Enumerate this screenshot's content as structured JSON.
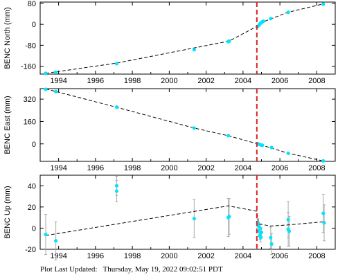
{
  "footer": {
    "label": "Plot Last Updated:",
    "timestamp": "Thursday, May 19, 2022 09:02:51 PDT"
  },
  "colors": {
    "data": "#00e5ff",
    "errorbar": "#aaaaaa",
    "model": "#000000",
    "event": "#dd2222"
  },
  "chart_data": [
    {
      "type": "scatter",
      "ylabel": "BENC North (mm)",
      "xlim": [
        1993.0,
        2009.0
      ],
      "ylim": [
        -190,
        85
      ],
      "xticks": [
        1994,
        1996,
        1998,
        2000,
        2002,
        2004,
        2006,
        2008
      ],
      "yticks": [
        80,
        0,
        -80,
        -160
      ],
      "event_line_x": 2004.75,
      "points": [
        {
          "x": 1993.3,
          "y": -187
        },
        {
          "x": 1993.85,
          "y": -183
        },
        {
          "x": 1997.15,
          "y": -150
        },
        {
          "x": 2001.35,
          "y": -97
        },
        {
          "x": 2003.2,
          "y": -66
        },
        {
          "x": 2003.25,
          "y": -64
        },
        {
          "x": 2004.8,
          "y": -8
        },
        {
          "x": 2004.87,
          "y": -3
        },
        {
          "x": 2004.92,
          "y": 2
        },
        {
          "x": 2004.97,
          "y": 6
        },
        {
          "x": 2005.05,
          "y": 10
        },
        {
          "x": 2005.1,
          "y": 12
        },
        {
          "x": 2005.5,
          "y": 22
        },
        {
          "x": 2006.45,
          "y": 46
        },
        {
          "x": 2008.35,
          "y": 77
        }
      ],
      "model": [
        {
          "x": 1993.3,
          "y": -187
        },
        {
          "x": 1997.15,
          "y": -148
        },
        {
          "x": 2003.25,
          "y": -64
        },
        {
          "x": 2004.75,
          "y": -8
        },
        {
          "x": 2005.1,
          "y": 10
        },
        {
          "x": 2006.45,
          "y": 46
        },
        {
          "x": 2008.35,
          "y": 78
        }
      ]
    },
    {
      "type": "scatter",
      "ylabel": "BENC East (mm)",
      "xlim": [
        1993.0,
        2009.0
      ],
      "ylim": [
        -125,
        395
      ],
      "xticks": [
        1994,
        1996,
        1998,
        2000,
        2002,
        2004,
        2006,
        2008
      ],
      "yticks": [
        320,
        160,
        0
      ],
      "event_line_x": 2004.75,
      "points": [
        {
          "x": 1993.3,
          "y": 390
        },
        {
          "x": 1993.85,
          "y": 374
        },
        {
          "x": 1997.15,
          "y": 263
        },
        {
          "x": 2001.35,
          "y": 113
        },
        {
          "x": 2003.2,
          "y": 59
        },
        {
          "x": 2004.8,
          "y": 1
        },
        {
          "x": 2004.87,
          "y": -2
        },
        {
          "x": 2004.97,
          "y": -8
        },
        {
          "x": 2005.05,
          "y": -10
        },
        {
          "x": 2005.55,
          "y": -26
        },
        {
          "x": 2006.45,
          "y": -67
        },
        {
          "x": 2008.35,
          "y": -122
        }
      ],
      "model": [
        {
          "x": 1993.3,
          "y": 393
        },
        {
          "x": 1997.15,
          "y": 262
        },
        {
          "x": 2001.35,
          "y": 113
        },
        {
          "x": 2003.2,
          "y": 58
        },
        {
          "x": 2004.75,
          "y": 2
        },
        {
          "x": 2006.45,
          "y": -67
        },
        {
          "x": 2008.35,
          "y": -122
        }
      ]
    },
    {
      "type": "scatter",
      "ylabel": "BENC Up (mm)",
      "xlim": [
        1993.0,
        2009.0
      ],
      "ylim": [
        -20,
        50
      ],
      "xticks": [
        1994,
        1996,
        1998,
        2000,
        2002,
        2004,
        2006,
        2008
      ],
      "yticks": [
        40,
        20,
        0,
        -20
      ],
      "event_line_x": 2004.75,
      "points": [
        {
          "x": 1993.3,
          "y": -6,
          "err": 19
        },
        {
          "x": 1993.85,
          "y": -12,
          "err": 18
        },
        {
          "x": 1997.15,
          "y": 40,
          "err": 9
        },
        {
          "x": 1997.15,
          "y": 35,
          "err": 10
        },
        {
          "x": 2001.35,
          "y": 9,
          "err": 18
        },
        {
          "x": 2003.2,
          "y": 10,
          "err": 18
        },
        {
          "x": 2003.25,
          "y": 11,
          "err": 17
        },
        {
          "x": 2004.8,
          "y": 5,
          "err": 4
        },
        {
          "x": 2004.84,
          "y": 2,
          "err": 4
        },
        {
          "x": 2004.87,
          "y": -3,
          "err": 4
        },
        {
          "x": 2004.9,
          "y": -7,
          "err": 4
        },
        {
          "x": 2004.93,
          "y": 0,
          "err": 4
        },
        {
          "x": 2004.96,
          "y": -9,
          "err": 4
        },
        {
          "x": 2005.0,
          "y": -4,
          "err": 4
        },
        {
          "x": 2005.5,
          "y": -9,
          "err": 10
        },
        {
          "x": 2005.55,
          "y": -15,
          "err": 10
        },
        {
          "x": 2006.45,
          "y": 8,
          "err": 17
        },
        {
          "x": 2006.45,
          "y": -1,
          "err": 16
        },
        {
          "x": 2006.5,
          "y": -3,
          "err": 14
        },
        {
          "x": 2008.35,
          "y": 14,
          "err": 18
        },
        {
          "x": 2008.4,
          "y": 5,
          "err": 17
        }
      ],
      "model": [
        {
          "x": 1993.3,
          "y": -7
        },
        {
          "x": 2003.2,
          "y": 21
        },
        {
          "x": 2004.75,
          "y": 16
        },
        {
          "x": 2004.85,
          "y": 4
        },
        {
          "x": 2005.5,
          "y": 2
        },
        {
          "x": 2006.45,
          "y": 3
        },
        {
          "x": 2008.35,
          "y": 6
        }
      ]
    }
  ]
}
